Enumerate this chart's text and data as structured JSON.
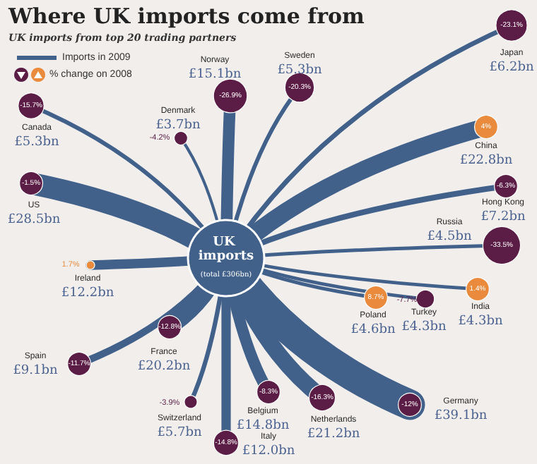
{
  "chart_data": {
    "type": "other",
    "title": "Where UK imports come from",
    "subtitle": "UK imports from top 20 trading partners",
    "categories": [
      "Japan",
      "Norway",
      "Sweden",
      "Canada",
      "Denmark",
      "US",
      "China",
      "Hong Kong",
      "Russia",
      "Ireland",
      "India",
      "Turkey",
      "Poland",
      "France",
      "Spain",
      "Germany",
      "Switzerland",
      "Italy",
      "Belgium",
      "Netherlands"
    ],
    "series": [
      {
        "name": "Imports in 2009",
        "color": "#41618a",
        "values": [
          6.2,
          15.1,
          5.3,
          5.3,
          3.7,
          28.5,
          22.8,
          7.2,
          4.5,
          12.2,
          4.3,
          4.3,
          4.6,
          20.2,
          9.1,
          39.1,
          5.7,
          12.0,
          14.8,
          21.2
        ],
        "value_labels": [
          "£6.2bn",
          "£15.1bn",
          "£5.3bn",
          "£5.3bn",
          "£3.7bn",
          "£28.5bn",
          "£22.8bn",
          "£7.2bn",
          "£4.5bn",
          "£12.2bn",
          "£4.3bn",
          "£4.3bn",
          "£4.6bn",
          "£20.2bn",
          "£9.1bn",
          "£39.1bn",
          "£5.7bn",
          "£12.0bn",
          "£14.8bn",
          "£21.2bn"
        ]
      },
      {
        "name": "% change on 2008",
        "values": [
          -23.1,
          -26.9,
          -20.3,
          -15.7,
          -4.2,
          -1.5,
          4,
          -6.3,
          -33.5,
          1.7,
          1.4,
          -7.7,
          8.7,
          -12.8,
          -11.7,
          -12,
          -3.9,
          -14.8,
          -8.3,
          -16.3
        ],
        "value_labels": [
          "-23.1%",
          "-26.9%",
          "-20.3%",
          "-15.7%",
          "-4.2%",
          "-1.5%",
          "4%",
          "-6.3%",
          "-33.5%",
          "1.7%",
          "1.4%",
          "-7.7%",
          "8.7%",
          "-12.8%",
          "-11.7%",
          "-12%",
          "-3.9%",
          "-14.8%",
          "-8.3%",
          "-16.3%"
        ],
        "colors": [
          "#5b1d45",
          "#5b1d45",
          "#5b1d45",
          "#5b1d45",
          "#5b1d45",
          "#5b1d45",
          "#e98a3c",
          "#5b1d45",
          "#5b1d45",
          "#e98a3c",
          "#e98a3c",
          "#5b1d45",
          "#e98a3c",
          "#5b1d45",
          "#5b1d45",
          "#5b1d45",
          "#5b1d45",
          "#5b1d45",
          "#5b1d45",
          "#5b1d45"
        ]
      }
    ],
    "annotations": [
      "UK imports",
      "(total £306bn)"
    ],
    "legend": "top left"
  }
}
